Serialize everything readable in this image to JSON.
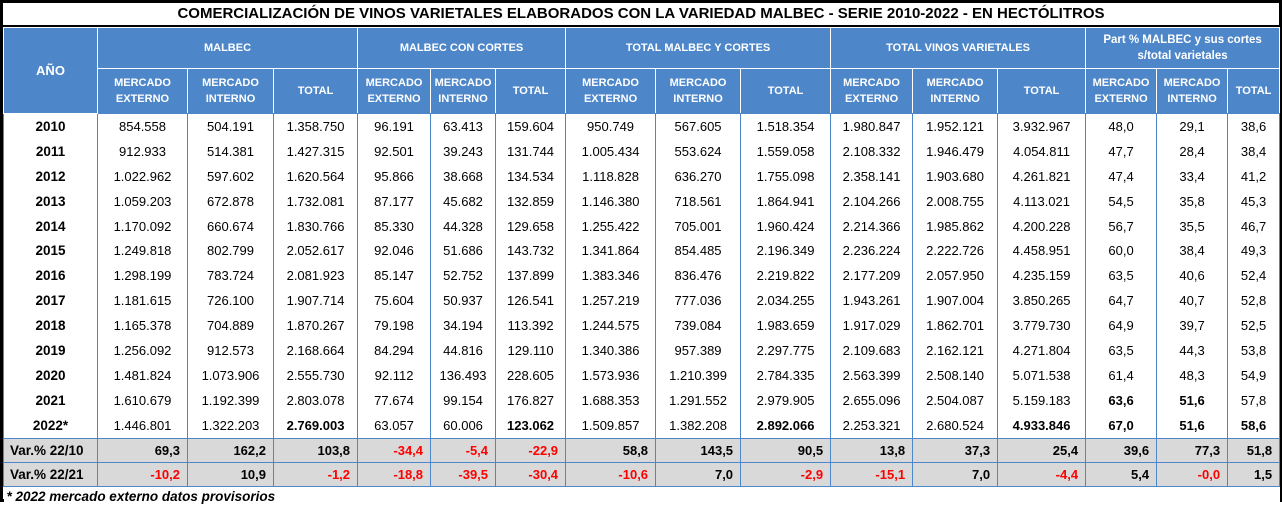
{
  "title": "COMERCIALIZACIÓN DE VINOS VARIETALES ELABORADOS CON LA VARIEDAD MALBEC - SERIE 2010-2022 - EN HECTÓLITROS",
  "colors": {
    "header_blue": "#4e87c9",
    "grid_blue": "#4e87c9",
    "var_row_gray": "#d9d9d9",
    "negative_red": "#ff0000"
  },
  "header": {
    "year_label": "AÑO",
    "groups": [
      {
        "label": "MALBEC"
      },
      {
        "label": "MALBEC CON CORTES"
      },
      {
        "label": "TOTAL MALBEC Y CORTES"
      },
      {
        "label": "TOTAL VINOS VARIETALES"
      },
      {
        "label": "Part % MALBEC y sus cortes s/total varietales"
      }
    ],
    "sub_columns": [
      "MERCADO EXTERNO",
      "MERCADO INTERNO",
      "TOTAL"
    ]
  },
  "rows": [
    {
      "year": "2010",
      "values": [
        "854.558",
        "504.191",
        "1.358.750",
        "96.191",
        "63.413",
        "159.604",
        "950.749",
        "567.605",
        "1.518.354",
        "1.980.847",
        "1.952.121",
        "3.932.967",
        "48,0",
        "29,1",
        "38,6"
      ],
      "bold": []
    },
    {
      "year": "2011",
      "values": [
        "912.933",
        "514.381",
        "1.427.315",
        "92.501",
        "39.243",
        "131.744",
        "1.005.434",
        "553.624",
        "1.559.058",
        "2.108.332",
        "1.946.479",
        "4.054.811",
        "47,7",
        "28,4",
        "38,4"
      ],
      "bold": []
    },
    {
      "year": "2012",
      "values": [
        "1.022.962",
        "597.602",
        "1.620.564",
        "95.866",
        "38.668",
        "134.534",
        "1.118.828",
        "636.270",
        "1.755.098",
        "2.358.141",
        "1.903.680",
        "4.261.821",
        "47,4",
        "33,4",
        "41,2"
      ],
      "bold": []
    },
    {
      "year": "2013",
      "values": [
        "1.059.203",
        "672.878",
        "1.732.081",
        "87.177",
        "45.682",
        "132.859",
        "1.146.380",
        "718.561",
        "1.864.941",
        "2.104.266",
        "2.008.755",
        "4.113.021",
        "54,5",
        "35,8",
        "45,3"
      ],
      "bold": []
    },
    {
      "year": "2014",
      "values": [
        "1.170.092",
        "660.674",
        "1.830.766",
        "85.330",
        "44.328",
        "129.658",
        "1.255.422",
        "705.001",
        "1.960.424",
        "2.214.366",
        "1.985.862",
        "4.200.228",
        "56,7",
        "35,5",
        "46,7"
      ],
      "bold": []
    },
    {
      "year": "2015",
      "values": [
        "1.249.818",
        "802.799",
        "2.052.617",
        "92.046",
        "51.686",
        "143.732",
        "1.341.864",
        "854.485",
        "2.196.349",
        "2.236.224",
        "2.222.726",
        "4.458.951",
        "60,0",
        "38,4",
        "49,3"
      ],
      "bold": []
    },
    {
      "year": "2016",
      "values": [
        "1.298.199",
        "783.724",
        "2.081.923",
        "85.147",
        "52.752",
        "137.899",
        "1.383.346",
        "836.476",
        "2.219.822",
        "2.177.209",
        "2.057.950",
        "4.235.159",
        "63,5",
        "40,6",
        "52,4"
      ],
      "bold": []
    },
    {
      "year": "2017",
      "values": [
        "1.181.615",
        "726.100",
        "1.907.714",
        "75.604",
        "50.937",
        "126.541",
        "1.257.219",
        "777.036",
        "2.034.255",
        "1.943.261",
        "1.907.004",
        "3.850.265",
        "64,7",
        "40,7",
        "52,8"
      ],
      "bold": []
    },
    {
      "year": "2018",
      "values": [
        "1.165.378",
        "704.889",
        "1.870.267",
        "79.198",
        "34.194",
        "113.392",
        "1.244.575",
        "739.084",
        "1.983.659",
        "1.917.029",
        "1.862.701",
        "3.779.730",
        "64,9",
        "39,7",
        "52,5"
      ],
      "bold": []
    },
    {
      "year": "2019",
      "values": [
        "1.256.092",
        "912.573",
        "2.168.664",
        "84.294",
        "44.816",
        "129.110",
        "1.340.386",
        "957.389",
        "2.297.775",
        "2.109.683",
        "2.162.121",
        "4.271.804",
        "63,5",
        "44,3",
        "53,8"
      ],
      "bold": []
    },
    {
      "year": "2020",
      "values": [
        "1.481.824",
        "1.073.906",
        "2.555.730",
        "92.112",
        "136.493",
        "228.605",
        "1.573.936",
        "1.210.399",
        "2.784.335",
        "2.563.399",
        "2.508.140",
        "5.071.538",
        "61,4",
        "48,3",
        "54,9"
      ],
      "bold": []
    },
    {
      "year": "2021",
      "values": [
        "1.610.679",
        "1.192.399",
        "2.803.078",
        "77.674",
        "99.154",
        "176.827",
        "1.688.353",
        "1.291.552",
        "2.979.905",
        "2.655.096",
        "2.504.087",
        "5.159.183",
        "63,6",
        "51,6",
        "57,8"
      ],
      "bold": [
        12,
        13
      ]
    },
    {
      "year": "2022*",
      "values": [
        "1.446.801",
        "1.322.203",
        "2.769.003",
        "63.057",
        "60.006",
        "123.062",
        "1.509.857",
        "1.382.208",
        "2.892.066",
        "2.253.321",
        "2.680.524",
        "4.933.846",
        "67,0",
        "51,6",
        "58,6"
      ],
      "bold": [
        2,
        5,
        8,
        11,
        12,
        13,
        14
      ]
    }
  ],
  "var_rows": [
    {
      "label": "Var.% 22/10",
      "values": [
        "69,3",
        "162,2",
        "103,8",
        "-34,4",
        "-5,4",
        "-22,9",
        "58,8",
        "143,5",
        "90,5",
        "13,8",
        "37,3",
        "25,4",
        "39,6",
        "77,3",
        "51,8"
      ]
    },
    {
      "label": "Var.% 22/21",
      "values": [
        "-10,2",
        "10,9",
        "-1,2",
        "-18,8",
        "-39,5",
        "-30,4",
        "-10,6",
        "7,0",
        "-2,9",
        "-15,1",
        "7,0",
        "-4,4",
        "5,4",
        "-0,0",
        "1,5"
      ]
    }
  ],
  "footnote": "* 2022 mercado externo datos provisorios"
}
